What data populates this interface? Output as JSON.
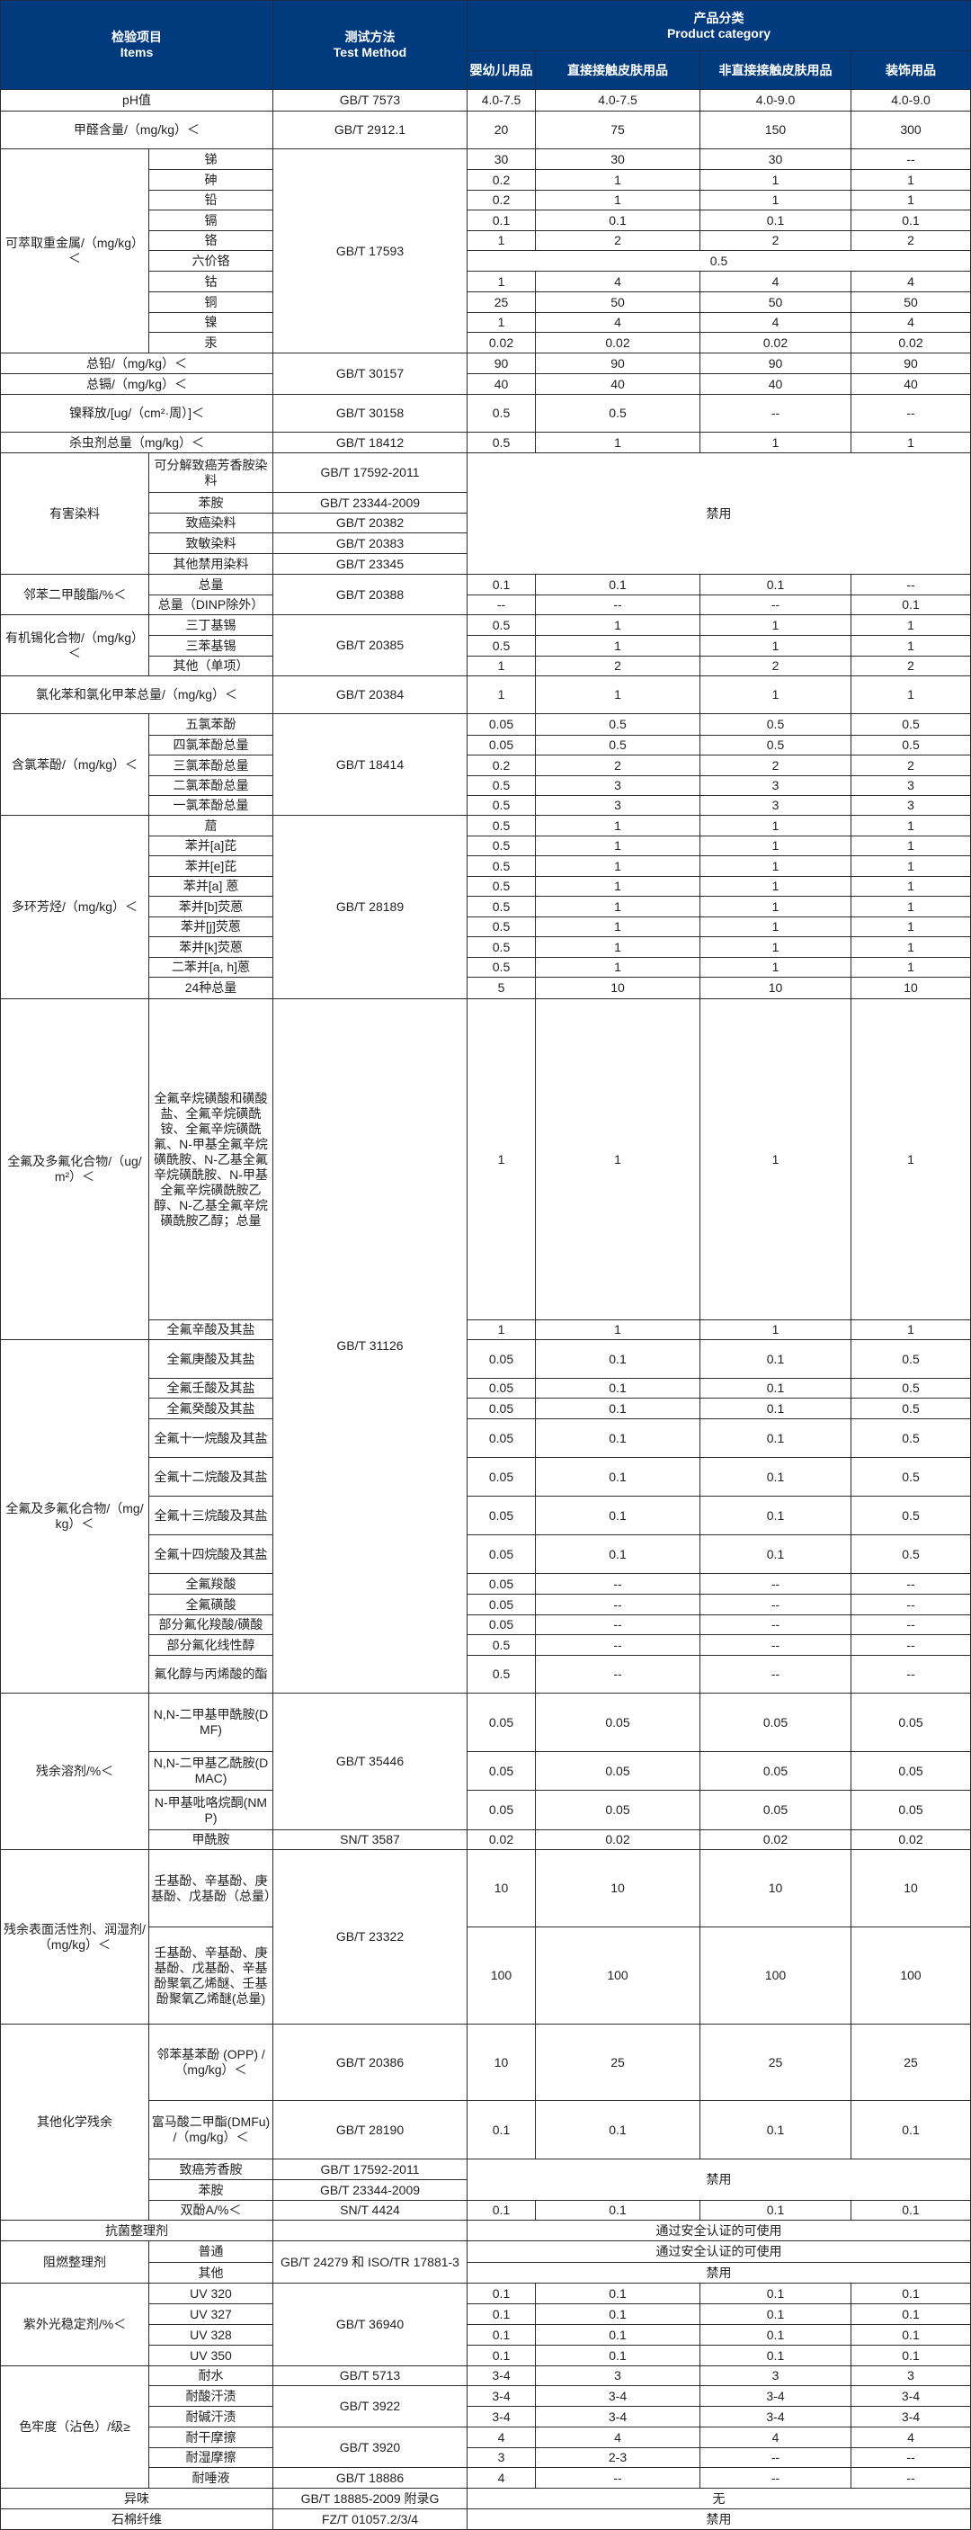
{
  "header": {
    "items_cn": "检验项目",
    "items_en": "Items",
    "method_cn": "测试方法",
    "method_en": "Test Method",
    "category_cn": "产品分类",
    "category_en": "Product category",
    "categories": [
      "婴幼儿用品",
      "直接接触皮肤用品",
      "非直接接触皮肤用品",
      "装饰用品"
    ]
  },
  "colors": {
    "header_bg": "#023a7e",
    "header_text": "#ffffff",
    "border": "#2b2b2b"
  },
  "groups": [
    {
      "item": "pH值",
      "method": "GB/T 7573",
      "values": [
        "4.0-7.5",
        "4.0-7.5",
        "4.0-9.0",
        "4.0-9.0"
      ]
    },
    {
      "item": "甲醛含量/（mg/kg）＜",
      "method": "GB/T 2912.1",
      "values": [
        "20",
        "75",
        "150",
        "300"
      ]
    },
    {
      "item": "可萃取重金属/（mg/kg）＜",
      "subitems": [
        {
          "name": "锑",
          "method": "GB/T 17593",
          "values": [
            "30",
            "30",
            "30",
            "--"
          ]
        },
        {
          "name": "砷",
          "method": "GB/T 17593",
          "values": [
            "0.2",
            "1",
            "1",
            "1"
          ]
        },
        {
          "name": "铅",
          "method": "GB/T 17593",
          "values": [
            "0.2",
            "1",
            "1",
            "1"
          ]
        },
        {
          "name": "镉",
          "method": "GB/T 17593",
          "values": [
            "0.1",
            "0.1",
            "0.1",
            "0.1"
          ]
        },
        {
          "name": "铬",
          "method": "GB/T 17593",
          "values": [
            "1",
            "2",
            "2",
            "2"
          ]
        },
        {
          "name": "六价铬",
          "method": "GB/T 17593",
          "all": "0.5"
        },
        {
          "name": "钴",
          "method": "GB/T 17593",
          "values": [
            "1",
            "4",
            "4",
            "4"
          ]
        },
        {
          "name": "铜",
          "method": "GB/T 17593",
          "values": [
            "25",
            "50",
            "50",
            "50"
          ]
        },
        {
          "name": "镍",
          "method": "GB/T 17593",
          "values": [
            "1",
            "4",
            "4",
            "4"
          ]
        },
        {
          "name": "汞",
          "method": "GB/T 17593",
          "values": [
            "0.02",
            "0.02",
            "0.02",
            "0.02"
          ]
        }
      ]
    },
    {
      "item": "总铅/（mg/kg）＜",
      "method": "GB/T 30157",
      "values": [
        "90",
        "90",
        "90",
        "90"
      ]
    },
    {
      "item": "总镉/（mg/kg）＜",
      "method": "GB/T 30157",
      "values": [
        "40",
        "40",
        "40",
        "40"
      ]
    },
    {
      "item": "镍释放/[ug/（cm²·周）]＜",
      "method": "GB/T 30158",
      "values": [
        "0.5",
        "0.5",
        "--",
        "--"
      ]
    },
    {
      "item": "杀虫剂总量（mg/kg）＜",
      "method": "GB/T 18412",
      "values": [
        "0.5",
        "1",
        "1",
        "1"
      ]
    },
    {
      "item": "有害染料",
      "subitems": [
        {
          "name": "可分解致癌芳香胺染料",
          "method": "GB/T 17592-2011",
          "all": "禁用"
        },
        {
          "name": "苯胺",
          "method": "GB/T 23344-2009",
          "all": "禁用"
        },
        {
          "name": "致癌染料",
          "method": "GB/T 20382",
          "all": "禁用"
        },
        {
          "name": "致敏染料",
          "method": "GB/T 20383",
          "all": "禁用"
        },
        {
          "name": "其他禁用染料",
          "method": "GB/T 23345",
          "all": "禁用"
        }
      ]
    },
    {
      "item": "邻苯二甲酸酯/%＜",
      "subitems": [
        {
          "name": "总量",
          "method": "GB/T 20388",
          "values": [
            "0.1",
            "0.1",
            "0.1",
            "--"
          ]
        },
        {
          "name": "总量（DINP除外）",
          "method": "GB/T 20388",
          "values": [
            "--",
            "--",
            "--",
            "0.1"
          ]
        }
      ]
    },
    {
      "item": "有机锡化合物/（mg/kg）＜",
      "subitems": [
        {
          "name": "三丁基锡",
          "method": "GB/T 20385",
          "values": [
            "0.5",
            "1",
            "1",
            "1"
          ]
        },
        {
          "name": "三苯基锡",
          "method": "GB/T 20385",
          "values": [
            "0.5",
            "1",
            "1",
            "1"
          ]
        },
        {
          "name": "其他（单项）",
          "method": "GB/T 20385",
          "values": [
            "1",
            "2",
            "2",
            "2"
          ]
        }
      ]
    },
    {
      "item": "氯化苯和氯化甲苯总量/（mg/kg）＜",
      "method": "GB/T 20384",
      "values": [
        "1",
        "1",
        "1",
        "1"
      ]
    },
    {
      "item": "含氯苯酚/（mg/kg）＜",
      "subitems": [
        {
          "name": "五氯苯酚",
          "method": "GB/T 18414",
          "values": [
            "0.05",
            "0.5",
            "0.5",
            "0.5"
          ]
        },
        {
          "name": "四氯苯酚总量",
          "method": "GB/T 18414",
          "values": [
            "0.05",
            "0.5",
            "0.5",
            "0.5"
          ]
        },
        {
          "name": "三氯苯酚总量",
          "method": "GB/T 18414",
          "values": [
            "0.2",
            "2",
            "2",
            "2"
          ]
        },
        {
          "name": "二氯苯酚总量",
          "method": "GB/T 18414",
          "values": [
            "0.5",
            "3",
            "3",
            "3"
          ]
        },
        {
          "name": "一氯苯酚总量",
          "method": "GB/T 18414",
          "values": [
            "0.5",
            "3",
            "3",
            "3"
          ]
        }
      ]
    },
    {
      "item": "多环芳烃/（mg/kg）＜",
      "subitems": [
        {
          "name": "䓛",
          "method": "GB/T 28189",
          "values": [
            "0.5",
            "1",
            "1",
            "1"
          ]
        },
        {
          "name": "苯并[a]芘",
          "method": "GB/T 28189",
          "values": [
            "0.5",
            "1",
            "1",
            "1"
          ]
        },
        {
          "name": "苯并[e]芘",
          "method": "GB/T 28189",
          "values": [
            "0.5",
            "1",
            "1",
            "1"
          ]
        },
        {
          "name": "苯并[a] 蒽",
          "method": "GB/T 28189",
          "values": [
            "0.5",
            "1",
            "1",
            "1"
          ]
        },
        {
          "name": "苯并[b]荧蒽",
          "method": "GB/T 28189",
          "values": [
            "0.5",
            "1",
            "1",
            "1"
          ]
        },
        {
          "name": "苯并[j]荧蒽",
          "method": "GB/T 28189",
          "values": [
            "0.5",
            "1",
            "1",
            "1"
          ]
        },
        {
          "name": "苯并[k]荧蒽",
          "method": "GB/T 28189",
          "values": [
            "0.5",
            "1",
            "1",
            "1"
          ]
        },
        {
          "name": "二苯并[a, h]蒽",
          "method": "GB/T 28189",
          "values": [
            "0.5",
            "1",
            "1",
            "1"
          ]
        },
        {
          "name": "24种总量",
          "method": "GB/T 28189",
          "values": [
            "5",
            "10",
            "10",
            "10"
          ]
        }
      ]
    },
    {
      "item": "全氟及多氟化合物/（ug/m²）＜",
      "subitems": [
        {
          "name": "全氟辛烷磺酸和磺酸盐、全氟辛烷磺酰铵、全氟辛烷磺酰氟、N-甲基全氟辛烷磺酰胺、N-乙基全氟辛烷磺酰胺、N-甲基全氟辛烷磺酰胺乙醇、N-乙基全氟辛烷磺酰胺乙醇；总量",
          "method": "GB/T 31126",
          "values": [
            "1",
            "1",
            "1",
            "1"
          ]
        },
        {
          "name": "全氟辛酸及其盐",
          "method": "GB/T 31126",
          "values": [
            "1",
            "1",
            "1",
            "1"
          ]
        }
      ]
    },
    {
      "item": "全氟及多氟化合物/（mg/kg）＜",
      "subitems": [
        {
          "name": "全氟庚酸及其盐",
          "method": "GB/T 31126",
          "values": [
            "0.05",
            "0.1",
            "0.1",
            "0.5"
          ]
        },
        {
          "name": "全氟壬酸及其盐",
          "method": "GB/T 31126",
          "values": [
            "0.05",
            "0.1",
            "0.1",
            "0.5"
          ]
        },
        {
          "name": "全氟癸酸及其盐",
          "method": "GB/T 31126",
          "values": [
            "0.05",
            "0.1",
            "0.1",
            "0.5"
          ]
        },
        {
          "name": "全氟十一烷酸及其盐",
          "method": "GB/T 31126",
          "values": [
            "0.05",
            "0.1",
            "0.1",
            "0.5"
          ]
        },
        {
          "name": "全氟十二烷酸及其盐",
          "method": "GB/T 31126",
          "values": [
            "0.05",
            "0.1",
            "0.1",
            "0.5"
          ]
        },
        {
          "name": "全氟十三烷酸及其盐",
          "method": "GB/T 31126",
          "values": [
            "0.05",
            "0.1",
            "0.1",
            "0.5"
          ]
        },
        {
          "name": "全氟十四烷酸及其盐",
          "method": "GB/T 31126",
          "values": [
            "0.05",
            "0.1",
            "0.1",
            "0.5"
          ]
        },
        {
          "name": "全氟羧酸",
          "method": "GB/T 31126",
          "values": [
            "0.05",
            "--",
            "--",
            "--"
          ]
        },
        {
          "name": "全氟磺酸",
          "method": "GB/T 31126",
          "values": [
            "0.05",
            "--",
            "--",
            "--"
          ]
        },
        {
          "name": "部分氟化羧酸/磺酸",
          "method": "GB/T 31126",
          "values": [
            "0.05",
            "--",
            "--",
            "--"
          ]
        },
        {
          "name": "部分氟化线性醇",
          "method": "GB/T 31126",
          "values": [
            "0.5",
            "--",
            "--",
            "--"
          ]
        },
        {
          "name": "氟化醇与丙烯酸的酯",
          "method": "GB/T 31126",
          "values": [
            "0.5",
            "--",
            "--",
            "--"
          ]
        }
      ]
    },
    {
      "item": "残余溶剂/%＜",
      "subitems": [
        {
          "name": "N,N-二甲基甲酰胺(DMF)",
          "method": "GB/T 35446",
          "values": [
            "0.05",
            "0.05",
            "0.05",
            "0.05"
          ]
        },
        {
          "name": "N,N-二甲基乙酰胺(DMAC)",
          "method": "GB/T 35446",
          "values": [
            "0.05",
            "0.05",
            "0.05",
            "0.05"
          ]
        },
        {
          "name": "N-甲基吡咯烷酮(NMP)",
          "method": "GB/T 35446",
          "values": [
            "0.05",
            "0.05",
            "0.05",
            "0.05"
          ]
        },
        {
          "name": "甲酰胺",
          "method": "SN/T 3587",
          "values": [
            "0.02",
            "0.02",
            "0.02",
            "0.02"
          ]
        }
      ]
    },
    {
      "item": "残余表面活性剂、润湿剂/（mg/kg）＜",
      "subitems": [
        {
          "name": "壬基酚、辛基酚、庚基酚、戊基酚（总量）",
          "method": "GB/T 23322",
          "values": [
            "10",
            "10",
            "10",
            "10"
          ]
        },
        {
          "name": "壬基酚、辛基酚、庚基酚、戊基酚、辛基酚聚氧乙烯醚、壬基酚聚氧乙烯醚(总量)",
          "method": "GB/T 23322",
          "values": [
            "100",
            "100",
            "100",
            "100"
          ]
        }
      ]
    },
    {
      "item": "其他化学残余",
      "subitems": [
        {
          "name": "邻苯基苯酚 (OPP) /（mg/kg）＜",
          "method": "GB/T 20386",
          "values": [
            "10",
            "25",
            "25",
            "25"
          ]
        },
        {
          "name": "富马酸二甲酯(DMFu) /（mg/kg）＜",
          "method": "GB/T 28190",
          "values": [
            "0.1",
            "0.1",
            "0.1",
            "0.1"
          ]
        },
        {
          "name": "致癌芳香胺",
          "method": "GB/T 17592-2011",
          "all": "禁用"
        },
        {
          "name": "苯胺",
          "method": "GB/T 23344-2009",
          "all": "禁用"
        },
        {
          "name": "双酚A/%＜",
          "method": "SN/T 4424",
          "values": [
            "0.1",
            "0.1",
            "0.1",
            "0.1"
          ]
        }
      ]
    },
    {
      "item": "抗菌整理剂",
      "method": "",
      "all": "通过安全认证的可使用"
    },
    {
      "item": "阻燃整理剂",
      "subitems": [
        {
          "name": "普通",
          "method": "GB/T 24279 和 ISO/TR 17881-3",
          "all": "通过安全认证的可使用"
        },
        {
          "name": "其他",
          "method": "GB/T 24279 和 ISO/TR 17881-3",
          "all": "禁用"
        }
      ]
    },
    {
      "item": "紫外光稳定剂/%＜",
      "subitems": [
        {
          "name": "UV 320",
          "method": "GB/T 36940",
          "values": [
            "0.1",
            "0.1",
            "0.1",
            "0.1"
          ]
        },
        {
          "name": "UV 327",
          "method": "GB/T 36940",
          "values": [
            "0.1",
            "0.1",
            "0.1",
            "0.1"
          ]
        },
        {
          "name": "UV 328",
          "method": "GB/T 36940",
          "values": [
            "0.1",
            "0.1",
            "0.1",
            "0.1"
          ]
        },
        {
          "name": "UV 350",
          "method": "GB/T 36940",
          "values": [
            "0.1",
            "0.1",
            "0.1",
            "0.1"
          ]
        }
      ]
    },
    {
      "item": "色牢度（沾色）/级≥",
      "subitems": [
        {
          "name": "耐水",
          "method": "GB/T 5713",
          "values": [
            "3-4",
            "3",
            "3",
            "3"
          ]
        },
        {
          "name": "耐酸汗渍",
          "method": "GB/T 3922",
          "values": [
            "3-4",
            "3-4",
            "3-4",
            "3-4"
          ]
        },
        {
          "name": "耐碱汗渍",
          "method": "GB/T 3922",
          "values": [
            "3-4",
            "3-4",
            "3-4",
            "3-4"
          ]
        },
        {
          "name": "耐干摩擦",
          "method": "GB/T 3920",
          "values": [
            "4",
            "4",
            "4",
            "4"
          ]
        },
        {
          "name": "耐湿摩擦",
          "method": "GB/T 3920",
          "values": [
            "3",
            "2-3",
            "--",
            "--"
          ]
        },
        {
          "name": "耐唾液",
          "method": "GB/T 18886",
          "values": [
            "4",
            "--",
            "--",
            "--"
          ]
        }
      ]
    },
    {
      "item": "异味",
      "method": "GB/T 18885-2009 附录G",
      "all": "无"
    },
    {
      "item": "石棉纤维",
      "method": "FZ/T 01057.2/3/4",
      "all": "禁用"
    }
  ]
}
